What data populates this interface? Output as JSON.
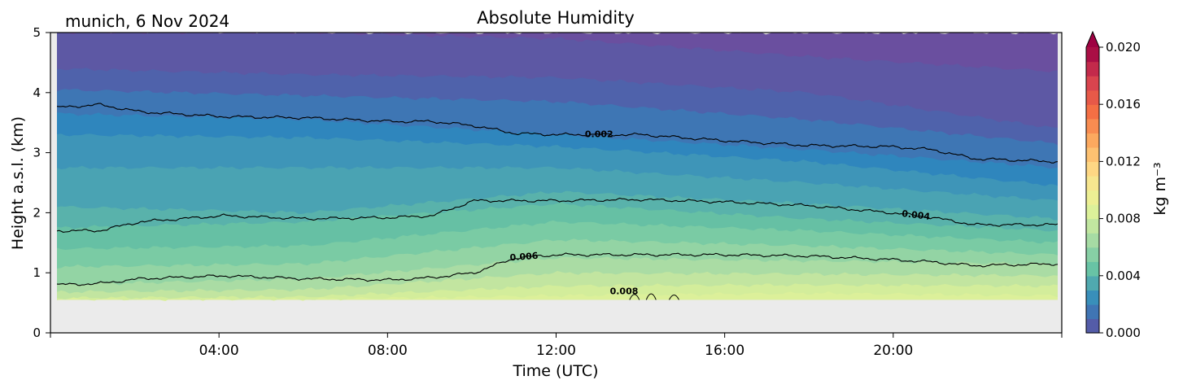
{
  "chart_data": {
    "type": "heatmap",
    "title": "Absolute Humidity",
    "subtitle": "munich, 6 Nov 2024",
    "xlabel": "Time (UTC)",
    "ylabel": "Height a.s.l. (km)",
    "colorbar_label": "kg m⁻³",
    "x_range_hours": [
      0,
      24
    ],
    "x_ticks": [
      "04:00",
      "08:00",
      "12:00",
      "16:00",
      "20:00"
    ],
    "x_tick_hours": [
      4,
      8,
      12,
      16,
      20
    ],
    "y_range_km": [
      0,
      5
    ],
    "y_ticks": [
      "0",
      "1",
      "2",
      "3",
      "4",
      "5"
    ],
    "data_bottom_km": 0.55,
    "colorbar_range": [
      0.0,
      0.02
    ],
    "colorbar_ticks": [
      "0.000",
      "0.004",
      "0.008",
      "0.012",
      "0.016",
      "0.020"
    ],
    "colorbar_extend": "max",
    "colormap": "Spectral_r",
    "contour_hours": [
      0,
      1,
      2,
      4,
      6,
      8,
      9,
      10,
      11,
      12,
      14,
      16,
      18,
      20,
      21,
      22,
      24
    ],
    "contours": [
      {
        "level": "0.002",
        "heights_km": [
          3.75,
          3.8,
          3.68,
          3.6,
          3.58,
          3.52,
          3.52,
          3.45,
          3.32,
          3.3,
          3.3,
          3.2,
          3.12,
          3.1,
          3.05,
          2.9,
          2.85
        ],
        "label_hour": 13.0
      },
      {
        "level": "0.004",
        "heights_km": [
          1.7,
          1.7,
          1.85,
          1.95,
          1.9,
          1.92,
          1.95,
          2.2,
          2.2,
          2.2,
          2.22,
          2.18,
          2.12,
          2.0,
          1.92,
          1.8,
          1.8
        ],
        "label_hour": 20.6
      },
      {
        "level": "0.006",
        "heights_km": [
          0.8,
          0.82,
          0.9,
          0.95,
          0.9,
          0.88,
          0.92,
          1.0,
          1.25,
          1.3,
          1.3,
          1.3,
          1.28,
          1.22,
          1.18,
          1.12,
          1.15
        ],
        "label_hour": 11.2
      }
    ],
    "contour_label_008": "0.008",
    "contour_label_008_hour": 13.6,
    "field_levels": [
      {
        "hours": [
          0,
          6,
          12,
          18,
          24
        ],
        "heights_km": [
          5.0,
          5.0,
          5.0,
          5.0,
          5.0
        ],
        "color": "#6a4f9f"
      },
      {
        "hours": [
          0,
          6,
          12,
          18,
          24
        ],
        "heights_km": [
          5.0,
          5.0,
          4.9,
          4.6,
          4.35
        ],
        "color": "#5d58a4"
      },
      {
        "hours": [
          0,
          6,
          12,
          18,
          24
        ],
        "heights_km": [
          4.4,
          4.3,
          4.25,
          4.0,
          3.4
        ],
        "color": "#4f62ab"
      },
      {
        "hours": [
          0,
          6,
          12,
          18,
          24
        ],
        "heights_km": [
          4.05,
          3.95,
          3.85,
          3.55,
          3.15
        ],
        "color": "#3e76b4"
      },
      {
        "hours": [
          0,
          6,
          12,
          18,
          24
        ],
        "heights_km": [
          3.65,
          3.55,
          3.3,
          3.05,
          2.75
        ],
        "color": "#2f86bd"
      },
      {
        "hours": [
          0,
          6,
          12,
          18,
          24
        ],
        "heights_km": [
          3.3,
          3.25,
          3.1,
          2.85,
          2.45
        ],
        "color": "#3e95b8"
      },
      {
        "hours": [
          0,
          6,
          12,
          18,
          24
        ],
        "heights_km": [
          2.75,
          2.75,
          2.75,
          2.5,
          2.2
        ],
        "color": "#4aa3b3"
      },
      {
        "hours": [
          0,
          6,
          12,
          18,
          24
        ],
        "heights_km": [
          2.1,
          2.0,
          2.35,
          2.15,
          1.9
        ],
        "color": "#59b2ab"
      },
      {
        "hours": [
          0,
          6,
          12,
          18,
          24
        ],
        "heights_km": [
          1.75,
          1.85,
          2.15,
          1.9,
          1.7
        ],
        "color": "#66c0a4"
      },
      {
        "hours": [
          0,
          6,
          12,
          18,
          24
        ],
        "heights_km": [
          1.4,
          1.45,
          1.85,
          1.7,
          1.5
        ],
        "color": "#7acba4"
      },
      {
        "hours": [
          0,
          6,
          12,
          18,
          24
        ],
        "heights_km": [
          1.1,
          1.15,
          1.55,
          1.45,
          1.3
        ],
        "color": "#93d4a4"
      },
      {
        "hours": [
          0,
          6,
          12,
          18,
          24
        ],
        "heights_km": [
          0.8,
          0.9,
          1.25,
          1.2,
          1.15
        ],
        "color": "#aadca4"
      },
      {
        "hours": [
          0,
          6,
          12,
          18,
          24
        ],
        "heights_km": [
          0.68,
          0.72,
          1.0,
          0.98,
          0.95
        ],
        "color": "#c2e5a0"
      },
      {
        "hours": [
          0,
          6,
          12,
          18,
          24
        ],
        "heights_km": [
          0.58,
          0.6,
          0.78,
          0.8,
          0.78
        ],
        "color": "#d3ed9b"
      },
      {
        "hours": [
          0,
          6,
          12,
          18,
          24
        ],
        "heights_km": [
          0.56,
          0.56,
          0.62,
          0.66,
          0.62
        ],
        "color": "#dcf09a"
      }
    ],
    "no_data_color": "#ebebeb",
    "contour_color": "#000000"
  }
}
